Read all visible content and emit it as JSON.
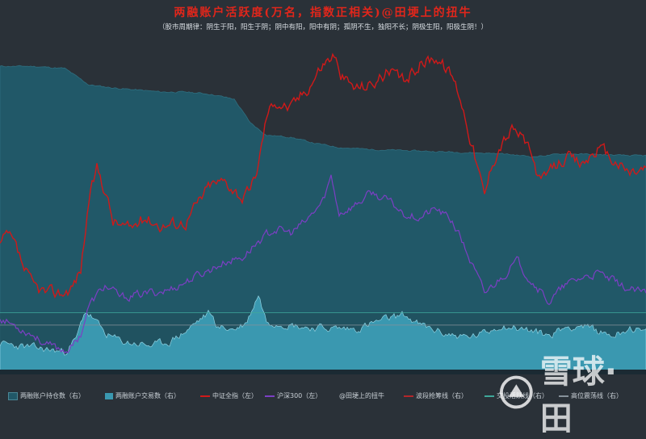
{
  "header": {
    "title": "两融账户活跃度(万名，指数正相关)@田埂上的扭牛",
    "subtitle": "（股市周期律：阴生于阳，阳生于阴；阴中有阳，阳中有阴；孤阴不生，独阳不长；阴极生阳，阳极生阴！）"
  },
  "watermark": {
    "text": "雪球·田",
    "icon": "snowball-logo-icon"
  },
  "colors": {
    "background": "#2a3138",
    "holding_area": "#215868",
    "trading_area": "#3a98b0",
    "csi_all": "#d01919",
    "hs300": "#7c3fc4",
    "band_bg": "#1f4f5c"
  },
  "chart_data": {
    "type": "area",
    "title": "两融账户活跃度(万名，指数正相关)@田埂上的扭牛",
    "grid": false,
    "legend_position": "bottom",
    "x": {
      "label": "",
      "points": 400
    },
    "anchors": {
      "holding_accounts": [
        [
          0,
          300
        ],
        [
          40,
          300
        ],
        [
          80,
          298
        ],
        [
          95,
          290
        ],
        [
          110,
          282
        ],
        [
          140,
          279
        ],
        [
          170,
          277
        ],
        [
          200,
          275
        ],
        [
          230,
          275
        ],
        [
          260,
          273
        ],
        [
          290,
          268
        ],
        [
          310,
          245
        ],
        [
          330,
          233
        ],
        [
          360,
          231
        ],
        [
          390,
          225
        ],
        [
          420,
          221
        ],
        [
          460,
          219
        ],
        [
          500,
          218
        ],
        [
          540,
          217
        ],
        [
          580,
          216
        ],
        [
          620,
          215
        ],
        [
          660,
          212
        ],
        [
          700,
          215
        ],
        [
          740,
          214
        ],
        [
          780,
          213
        ],
        [
          800,
          213
        ]
      ],
      "trading_accounts": [
        [
          0,
          30
        ],
        [
          20,
          28
        ],
        [
          50,
          25
        ],
        [
          80,
          22
        ],
        [
          95,
          35
        ],
        [
          105,
          62
        ],
        [
          115,
          55
        ],
        [
          130,
          40
        ],
        [
          150,
          32
        ],
        [
          170,
          30
        ],
        [
          190,
          28
        ],
        [
          210,
          32
        ],
        [
          230,
          42
        ],
        [
          250,
          55
        ],
        [
          260,
          60
        ],
        [
          270,
          46
        ],
        [
          290,
          44
        ],
        [
          305,
          50
        ],
        [
          320,
          78
        ],
        [
          330,
          52
        ],
        [
          350,
          50
        ],
        [
          380,
          46
        ],
        [
          410,
          45
        ],
        [
          440,
          44
        ],
        [
          470,
          52
        ],
        [
          500,
          58
        ],
        [
          520,
          48
        ],
        [
          550,
          40
        ],
        [
          580,
          36
        ],
        [
          600,
          40
        ],
        [
          620,
          48
        ],
        [
          650,
          44
        ],
        [
          680,
          38
        ],
        [
          700,
          46
        ],
        [
          720,
          48
        ],
        [
          740,
          42
        ],
        [
          760,
          38
        ],
        [
          780,
          46
        ],
        [
          800,
          40
        ]
      ],
      "csi_all_index": [
        [
          0,
          4600
        ],
        [
          10,
          4720
        ],
        [
          20,
          4550
        ],
        [
          30,
          4300
        ],
        [
          40,
          4100
        ],
        [
          60,
          4000
        ],
        [
          80,
          4020
        ],
        [
          90,
          4100
        ],
        [
          100,
          4300
        ],
        [
          110,
          5150
        ],
        [
          120,
          5550
        ],
        [
          130,
          5300
        ],
        [
          140,
          4900
        ],
        [
          160,
          4800
        ],
        [
          180,
          4950
        ],
        [
          200,
          4850
        ],
        [
          230,
          4900
        ],
        [
          260,
          5350
        ],
        [
          280,
          5400
        ],
        [
          300,
          5200
        ],
        [
          310,
          5250
        ],
        [
          320,
          5600
        ],
        [
          330,
          6200
        ],
        [
          340,
          6400
        ],
        [
          360,
          6300
        ],
        [
          380,
          6550
        ],
        [
          400,
          6850
        ],
        [
          415,
          6980
        ],
        [
          420,
          6700
        ],
        [
          440,
          6550
        ],
        [
          460,
          6600
        ],
        [
          480,
          6750
        ],
        [
          500,
          6620
        ],
        [
          520,
          6850
        ],
        [
          540,
          6950
        ],
        [
          560,
          6700
        ],
        [
          570,
          6450
        ],
        [
          585,
          5850
        ],
        [
          600,
          5200
        ],
        [
          610,
          5650
        ],
        [
          620,
          5850
        ],
        [
          635,
          6050
        ],
        [
          650,
          5900
        ],
        [
          660,
          5650
        ],
        [
          670,
          5350
        ],
        [
          680,
          5500
        ],
        [
          700,
          5700
        ],
        [
          720,
          5600
        ],
        [
          740,
          5800
        ],
        [
          760,
          5650
        ],
        [
          780,
          5500
        ],
        [
          800,
          5550
        ]
      ],
      "hs300_index": [
        [
          0,
          3700
        ],
        [
          20,
          3600
        ],
        [
          40,
          3500
        ],
        [
          60,
          3350
        ],
        [
          80,
          3300
        ],
        [
          90,
          3350
        ],
        [
          100,
          3500
        ],
        [
          110,
          3850
        ],
        [
          130,
          4100
        ],
        [
          150,
          3950
        ],
        [
          180,
          4000
        ],
        [
          210,
          4050
        ],
        [
          240,
          4200
        ],
        [
          260,
          4300
        ],
        [
          280,
          4400
        ],
        [
          300,
          4450
        ],
        [
          320,
          4650
        ],
        [
          340,
          4800
        ],
        [
          360,
          4750
        ],
        [
          380,
          4900
        ],
        [
          400,
          5150
        ],
        [
          410,
          5450
        ],
        [
          420,
          5000
        ],
        [
          440,
          5100
        ],
        [
          460,
          5250
        ],
        [
          480,
          5150
        ],
        [
          500,
          5000
        ],
        [
          520,
          4950
        ],
        [
          540,
          5050
        ],
        [
          560,
          4900
        ],
        [
          570,
          4700
        ],
        [
          585,
          4350
        ],
        [
          600,
          4000
        ],
        [
          620,
          4200
        ],
        [
          640,
          4400
        ],
        [
          660,
          4150
        ],
        [
          680,
          3900
        ],
        [
          700,
          4100
        ],
        [
          720,
          4200
        ],
        [
          740,
          4250
        ],
        [
          760,
          4150
        ],
        [
          780,
          4050
        ],
        [
          800,
          4000
        ]
      ]
    },
    "volatility": {
      "holding_accounts": 0.6,
      "trading_accounts": 3.2,
      "csi_all_index": 70,
      "hs300_index": 45
    },
    "y_left": {
      "label": "",
      "range": [
        3000,
        7200
      ]
    },
    "y_right": {
      "label": "",
      "range": [
        0,
        330
      ]
    },
    "reference_lines": {
      "交投活跃线": 60,
      "高位震荡线": 48
    },
    "series": [
      {
        "name": "两融账户持仓数（右）",
        "key": "holding_accounts",
        "axis": "right",
        "kind": "area"
      },
      {
        "name": "两融账户交易数（右）",
        "key": "trading_accounts",
        "axis": "right",
        "kind": "area"
      },
      {
        "name": "中证全指（左）",
        "key": "csi_all_index",
        "axis": "left",
        "kind": "line"
      },
      {
        "name": "沪深300（左）",
        "key": "hs300_index",
        "axis": "left",
        "kind": "line"
      },
      {
        "name": "@田埂上的扭牛",
        "key": "",
        "axis": "",
        "kind": "text"
      },
      {
        "name": "波段抢筹线（右）",
        "key": "",
        "axis": "right",
        "kind": "line"
      },
      {
        "name": "交投活跃线（右）",
        "key": "",
        "axis": "right",
        "kind": "line"
      },
      {
        "name": "高位震荡线（右）",
        "key": "",
        "axis": "right",
        "kind": "line"
      }
    ]
  }
}
